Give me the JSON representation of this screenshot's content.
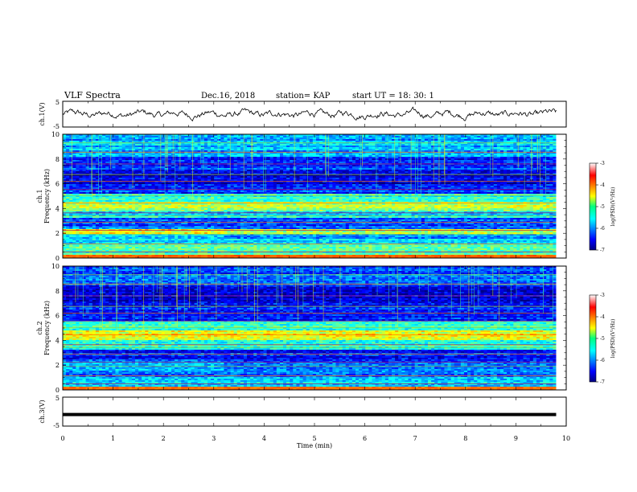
{
  "header": {
    "title": "VLF Spectra",
    "date": "Dec.16, 2018",
    "station": "station= KAP",
    "start": "start  UT =   18: 30: 1"
  },
  "chart_data": [
    {
      "type": "line",
      "name": "ch1-waveform",
      "ylabel": "ch.1(V)",
      "ylim": [
        -5,
        5
      ],
      "yticks": [
        "5",
        "-5"
      ],
      "xlim": [
        0,
        10
      ],
      "extent_min": 9.8,
      "trend": "noisy fluctuation around 0 V, roughly -2 to +2 V"
    },
    {
      "type": "heatmap",
      "name": "ch1-spectrogram",
      "ylabel": "ch.1\nFrequency (kHz)",
      "ylim": [
        0,
        10
      ],
      "yticks": [
        "0",
        "2",
        "4",
        "6",
        "8",
        "10"
      ],
      "xlim": [
        0,
        10
      ],
      "extent_min": 9.8,
      "colorbar": {
        "label": "log(PSD)(V²/Hz)",
        "range": [
          -7,
          -3
        ],
        "ticks": [
          "-3",
          "-4",
          "-5",
          "-6",
          "-7"
        ]
      },
      "bands": [
        {
          "f": [
            0,
            0.3
          ],
          "level": -4.0
        },
        {
          "f": [
            0.3,
            1.2
          ],
          "level": -5.3
        },
        {
          "f": [
            1.2,
            2.0
          ],
          "level": -5.8
        },
        {
          "f": [
            2.0,
            2.4
          ],
          "level": -4.8
        },
        {
          "f": [
            2.4,
            3.2
          ],
          "level": -6.2
        },
        {
          "f": [
            3.2,
            3.8
          ],
          "level": -5.5
        },
        {
          "f": [
            3.8,
            4.6
          ],
          "level": -4.9
        },
        {
          "f": [
            4.6,
            5.2
          ],
          "level": -5.4
        },
        {
          "f": [
            5.2,
            6.0
          ],
          "level": -6.3
        },
        {
          "f": [
            6.0,
            7.0
          ],
          "level": -6.7
        },
        {
          "f": [
            7.0,
            8.2
          ],
          "level": -6.3
        },
        {
          "f": [
            8.2,
            10.0
          ],
          "level": -5.8
        }
      ]
    },
    {
      "type": "heatmap",
      "name": "ch2-spectrogram",
      "ylabel": "ch.2\nFrequency (kHz)",
      "ylim": [
        0,
        10
      ],
      "yticks": [
        "0",
        "2",
        "4",
        "6",
        "8",
        "10"
      ],
      "xlim": [
        0,
        10
      ],
      "extent_min": 9.8,
      "colorbar": {
        "label": "log(PSD)(V²/Hz)",
        "range": [
          -7,
          -3
        ],
        "ticks": [
          "-3",
          "-4",
          "-5",
          "-6",
          "-7"
        ]
      },
      "bands": [
        {
          "f": [
            0,
            0.3
          ],
          "level": -4.2
        },
        {
          "f": [
            0.3,
            1.0
          ],
          "level": -5.6
        },
        {
          "f": [
            1.0,
            1.8
          ],
          "level": -6.0
        },
        {
          "f": [
            1.8,
            2.4
          ],
          "level": -6.2
        },
        {
          "f": [
            2.4,
            3.3
          ],
          "level": -6.4
        },
        {
          "f": [
            3.3,
            4.0
          ],
          "level": -5.3
        },
        {
          "f": [
            4.0,
            4.8
          ],
          "level": -4.6
        },
        {
          "f": [
            4.8,
            5.6
          ],
          "level": -5.2
        },
        {
          "f": [
            5.6,
            7.0
          ],
          "level": -6.4
        },
        {
          "f": [
            7.0,
            8.5
          ],
          "level": -6.6
        },
        {
          "f": [
            8.5,
            10.0
          ],
          "level": -6.2
        }
      ]
    },
    {
      "type": "line",
      "name": "ch3-waveform",
      "ylabel": "ch.3(V)",
      "ylim": [
        -5,
        5
      ],
      "yticks": [
        "5",
        "-5"
      ],
      "xlim": [
        0,
        10
      ],
      "extent_min": 9.8,
      "level": -1.0
    }
  ],
  "xaxis": {
    "label": "Time  (min)",
    "ticks": [
      "0",
      "1",
      "2",
      "3",
      "4",
      "5",
      "6",
      "7",
      "8",
      "9",
      "10"
    ]
  }
}
